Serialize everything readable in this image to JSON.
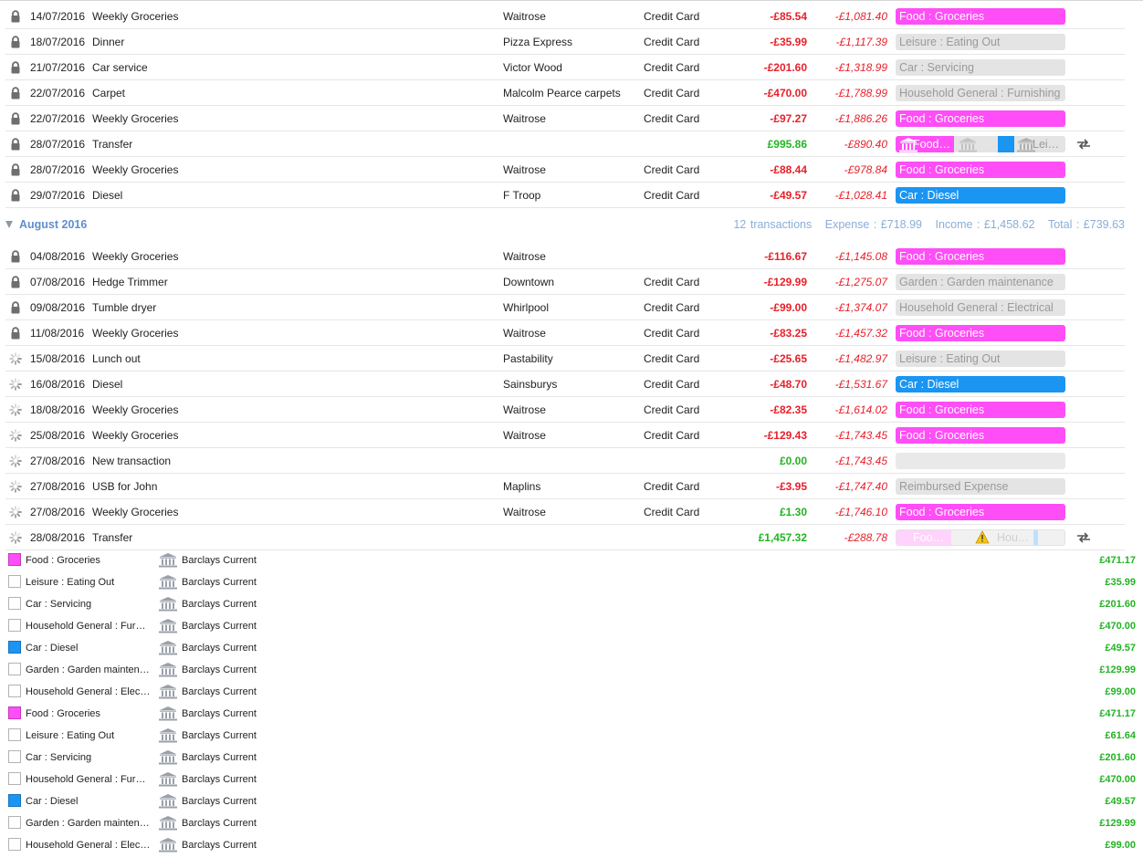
{
  "colors": {
    "food": "#ff4df7",
    "diesel": "#1a95f2",
    "negative": "#e8202a",
    "positive": "#22b422",
    "header": "#5f8fd0"
  },
  "july_transactions": [
    {
      "status": "lock-icon",
      "date": "14/07/2016",
      "desc": "Weekly Groceries",
      "payee": "Waitrose",
      "account": "Credit Card",
      "amount": "-£85.54",
      "balance": "-£1,081.40",
      "category": "Food : Groceries",
      "cat_style": "food"
    },
    {
      "status": "lock-icon",
      "date": "18/07/2016",
      "desc": "Dinner",
      "payee": "Pizza Express",
      "account": "Credit Card",
      "amount": "-£35.99",
      "balance": "-£1,117.39",
      "category": "Leisure : Eating Out",
      "cat_style": "grey"
    },
    {
      "status": "lock-icon",
      "date": "21/07/2016",
      "desc": "Car service",
      "payee": "Victor Wood",
      "account": "Credit Card",
      "amount": "-£201.60",
      "balance": "-£1,318.99",
      "category": "Car : Servicing",
      "cat_style": "grey"
    },
    {
      "status": "lock-icon",
      "date": "22/07/2016",
      "desc": "Carpet",
      "payee": "Malcolm Pearce carpets",
      "account": "Credit Card",
      "amount": "-£470.00",
      "balance": "-£1,788.99",
      "category": "Household General : Furnishing",
      "cat_style": "grey"
    },
    {
      "status": "lock-icon",
      "date": "22/07/2016",
      "desc": "Weekly Groceries",
      "payee": "Waitrose",
      "account": "Credit Card",
      "amount": "-£97.27",
      "balance": "-£1,886.26",
      "category": "Food : Groceries",
      "cat_style": "food"
    },
    {
      "status": "lock-icon",
      "date": "28/07/2016",
      "desc": "Transfer",
      "payee": "",
      "account": "",
      "amount": "£995.86",
      "balance": "-£890.40",
      "category": "",
      "cat_style": "split",
      "split": [
        "Food…",
        "Lei…"
      ]
    },
    {
      "status": "lock-icon",
      "date": "28/07/2016",
      "desc": "Weekly Groceries",
      "payee": "Waitrose",
      "account": "Credit Card",
      "amount": "-£88.44",
      "balance": "-£978.84",
      "category": "Food : Groceries",
      "cat_style": "food"
    },
    {
      "status": "lock-icon",
      "date": "29/07/2016",
      "desc": "Diesel",
      "payee": "F Troop",
      "account": "Credit Card",
      "amount": "-£49.57",
      "balance": "-£1,028.41",
      "category": "Car : Diesel",
      "cat_style": "diesel"
    }
  ],
  "august": {
    "title": "August 2016",
    "summary": {
      "count": "12 transactions",
      "expense": "Expense : £718.99",
      "income": "Income : £1,458.62",
      "total": "Total : £739.63"
    }
  },
  "august_transactions": [
    {
      "status": "lock-icon",
      "date": "04/08/2016",
      "desc": "Weekly Groceries",
      "payee": "Waitrose",
      "account": "",
      "amount": "-£116.67",
      "balance": "-£1,145.08",
      "category": "Food : Groceries",
      "cat_style": "food"
    },
    {
      "status": "lock-icon",
      "date": "07/08/2016",
      "desc": "Hedge Trimmer",
      "payee": "Downtown",
      "account": "Credit Card",
      "amount": "-£129.99",
      "balance": "-£1,275.07",
      "category": "Garden : Garden maintenance",
      "cat_style": "grey"
    },
    {
      "status": "lock-icon",
      "date": "09/08/2016",
      "desc": "Tumble dryer",
      "payee": "Whirlpool",
      "account": "Credit Card",
      "amount": "-£99.00",
      "balance": "-£1,374.07",
      "category": "Household General : Electrical",
      "cat_style": "grey"
    },
    {
      "status": "lock-icon",
      "date": "11/08/2016",
      "desc": "Weekly Groceries",
      "payee": "Waitrose",
      "account": "Credit Card",
      "amount": "-£83.25",
      "balance": "-£1,457.32",
      "category": "Food : Groceries",
      "cat_style": "food"
    },
    {
      "status": "pending-icon",
      "date": "15/08/2016",
      "desc": "Lunch out",
      "payee": "Pastability",
      "account": "Credit Card",
      "amount": "-£25.65",
      "balance": "-£1,482.97",
      "category": "Leisure : Eating Out",
      "cat_style": "grey"
    },
    {
      "status": "pending-icon",
      "date": "16/08/2016",
      "desc": "Diesel",
      "payee": "Sainsburys",
      "account": "Credit Card",
      "amount": "-£48.70",
      "balance": "-£1,531.67",
      "category": "Car : Diesel",
      "cat_style": "diesel"
    },
    {
      "status": "pending-icon",
      "date": "18/08/2016",
      "desc": "Weekly Groceries",
      "payee": "Waitrose",
      "account": "Credit Card",
      "amount": "-£82.35",
      "balance": "-£1,614.02",
      "category": "Food : Groceries",
      "cat_style": "food"
    },
    {
      "status": "pending-icon",
      "date": "25/08/2016",
      "desc": "Weekly Groceries",
      "payee": "Waitrose",
      "account": "Credit Card",
      "amount": "-£129.43",
      "balance": "-£1,743.45",
      "category": "Food : Groceries",
      "cat_style": "food"
    },
    {
      "status": "pending-icon",
      "date": "27/08/2016",
      "desc": "New transaction",
      "payee": "",
      "account": "",
      "amount": "£0.00",
      "balance": "-£1,743.45",
      "category": "",
      "cat_style": "empty"
    },
    {
      "status": "pending-icon",
      "date": "27/08/2016",
      "desc": "USB for John",
      "payee": "Maplins",
      "account": "Credit Card",
      "amount": "-£3.95",
      "balance": "-£1,747.40",
      "category": "Reimbursed Expense",
      "cat_style": "grey"
    },
    {
      "status": "pending-icon",
      "date": "27/08/2016",
      "desc": "Weekly Groceries",
      "payee": "Waitrose",
      "account": "Credit Card",
      "amount": "£1.30",
      "balance": "-£1,746.10",
      "category": "Food : Groceries",
      "cat_style": "food"
    },
    {
      "status": "pending-icon",
      "date": "28/08/2016",
      "desc": "Transfer",
      "payee": "",
      "account": "",
      "amount": "£1,457.32",
      "balance": "-£288.78",
      "category": "",
      "cat_style": "split2",
      "split": [
        "Foo…",
        "Hou…"
      ]
    }
  ],
  "splits": [
    {
      "category": "Food : Groceries",
      "swatch": "food",
      "account": "Barclays Current",
      "amount": "£471.17"
    },
    {
      "category": "Leisure : Eating Out",
      "swatch": "none",
      "account": "Barclays Current",
      "amount": "£35.99"
    },
    {
      "category": "Car : Servicing",
      "swatch": "none",
      "account": "Barclays Current",
      "amount": "£201.60"
    },
    {
      "category": "Household General : Fur…",
      "swatch": "none",
      "account": "Barclays Current",
      "amount": "£470.00"
    },
    {
      "category": "Car : Diesel",
      "swatch": "diesel",
      "account": "Barclays Current",
      "amount": "£49.57"
    },
    {
      "category": "Garden : Garden mainten…",
      "swatch": "none",
      "account": "Barclays Current",
      "amount": "£129.99"
    },
    {
      "category": "Household General : Elec…",
      "swatch": "none",
      "account": "Barclays Current",
      "amount": "£99.00"
    },
    {
      "category": "Food : Groceries",
      "swatch": "food",
      "account": "Barclays Current",
      "amount": "£471.17"
    },
    {
      "category": "Leisure : Eating Out",
      "swatch": "none",
      "account": "Barclays Current",
      "amount": "£61.64"
    },
    {
      "category": "Car : Servicing",
      "swatch": "none",
      "account": "Barclays Current",
      "amount": "£201.60"
    },
    {
      "category": "Household General : Fur…",
      "swatch": "none",
      "account": "Barclays Current",
      "amount": "£470.00"
    },
    {
      "category": "Car : Diesel",
      "swatch": "diesel",
      "account": "Barclays Current",
      "amount": "£49.57"
    },
    {
      "category": "Garden : Garden mainten…",
      "swatch": "none",
      "account": "Barclays Current",
      "amount": "£129.99"
    },
    {
      "category": "Household General : Elec…",
      "swatch": "none",
      "account": "Barclays Current",
      "amount": "£99.00"
    }
  ]
}
